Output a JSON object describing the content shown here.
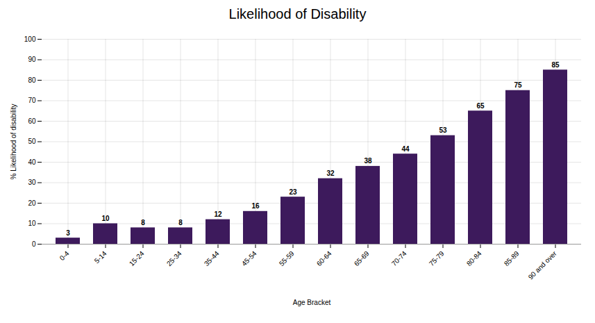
{
  "chart_data": {
    "type": "bar",
    "title": "Likelihood of Disability",
    "xlabel": "Age Bracket",
    "ylabel": "% Likelihood of disability",
    "categories": [
      "0-4",
      "5-14",
      "15-24",
      "25-34",
      "35-44",
      "45-54",
      "55-59",
      "60-64",
      "65-69",
      "70-74",
      "75-79",
      "80-84",
      "85-89",
      "90 and over"
    ],
    "values": [
      3,
      10,
      8,
      8,
      12,
      16,
      23,
      32,
      38,
      44,
      53,
      65,
      75,
      85
    ],
    "color": "#3d1a5c",
    "ylim": [
      0,
      100
    ],
    "yticks": [
      0,
      10,
      20,
      30,
      40,
      50,
      60,
      70,
      80,
      90,
      100
    ],
    "grid": true,
    "data_labels": true
  }
}
